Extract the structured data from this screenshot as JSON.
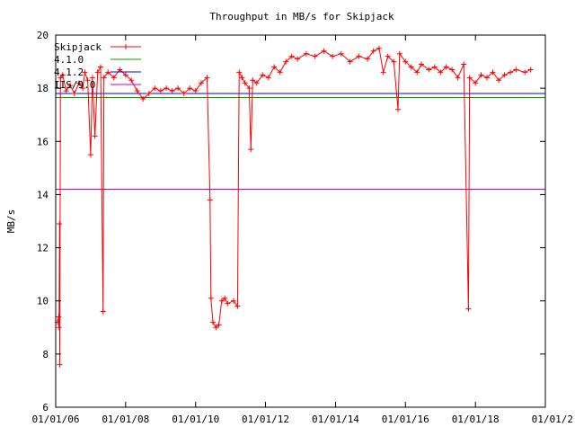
{
  "chart_data": {
    "type": "line",
    "title": "Throughput in MB/s for Skipjack",
    "xlabel": "",
    "ylabel": "MB/s",
    "ylim": [
      6,
      20
    ],
    "xlim": [
      "2006-01-01",
      "2020-01-01"
    ],
    "yticks": [
      6,
      8,
      10,
      12,
      14,
      16,
      18,
      20
    ],
    "xticks": [
      "01/01/06",
      "01/01/08",
      "01/01/10",
      "01/01/12",
      "01/01/14",
      "01/01/16",
      "01/01/18",
      "01/01/2"
    ],
    "xtick_dates": [
      "2006-01-01",
      "2008-01-01",
      "2010-01-01",
      "2012-01-01",
      "2014-01-01",
      "2016-01-01",
      "2018-01-01",
      "2020-01-01"
    ],
    "grid": false,
    "legend_position": "top-left",
    "series": [
      {
        "name": "Skipjack",
        "color": "#ff0000",
        "marker": "plus",
        "points": [
          [
            "2006-01-20",
            9.2
          ],
          [
            "2006-02-01",
            9.4
          ],
          [
            "2006-02-05",
            9.0
          ],
          [
            "2006-02-10",
            12.9
          ],
          [
            "2006-02-12",
            7.6
          ],
          [
            "2006-02-20",
            18.4
          ],
          [
            "2006-03-15",
            18.5
          ],
          [
            "2006-04-20",
            17.9
          ],
          [
            "2006-06-01",
            18.1
          ],
          [
            "2006-07-15",
            17.8
          ],
          [
            "2006-09-01",
            18.2
          ],
          [
            "2006-10-10",
            18.0
          ],
          [
            "2006-11-01",
            18.6
          ],
          [
            "2006-12-01",
            18.3
          ],
          [
            "2007-01-01",
            15.5
          ],
          [
            "2007-01-20",
            18.4
          ],
          [
            "2007-02-15",
            16.2
          ],
          [
            "2007-03-15",
            18.6
          ],
          [
            "2007-04-15",
            18.8
          ],
          [
            "2007-05-10",
            9.6
          ],
          [
            "2007-05-20",
            18.4
          ],
          [
            "2007-07-01",
            18.6
          ],
          [
            "2007-09-01",
            18.4
          ],
          [
            "2007-11-01",
            18.7
          ],
          [
            "2008-01-01",
            18.5
          ],
          [
            "2008-03-01",
            18.3
          ],
          [
            "2008-05-01",
            17.9
          ],
          [
            "2008-07-01",
            17.6
          ],
          [
            "2008-09-01",
            17.8
          ],
          [
            "2008-11-01",
            18.0
          ],
          [
            "2009-01-01",
            17.9
          ],
          [
            "2009-03-01",
            18.0
          ],
          [
            "2009-05-01",
            17.9
          ],
          [
            "2009-07-01",
            18.0
          ],
          [
            "2009-09-01",
            17.8
          ],
          [
            "2009-11-01",
            18.0
          ],
          [
            "2010-01-01",
            17.9
          ],
          [
            "2010-03-01",
            18.2
          ],
          [
            "2010-05-01",
            18.4
          ],
          [
            "2010-06-01",
            13.8
          ],
          [
            "2010-06-10",
            10.1
          ],
          [
            "2010-07-01",
            9.2
          ],
          [
            "2010-08-01",
            9.0
          ],
          [
            "2010-09-01",
            9.1
          ],
          [
            "2010-10-01",
            10.0
          ],
          [
            "2010-11-01",
            10.1
          ],
          [
            "2010-12-01",
            9.9
          ],
          [
            "2011-02-01",
            10.0
          ],
          [
            "2011-03-15",
            9.8
          ],
          [
            "2011-04-01",
            18.6
          ],
          [
            "2011-05-01",
            18.4
          ],
          [
            "2011-06-01",
            18.2
          ],
          [
            "2011-07-15",
            18.0
          ],
          [
            "2011-08-01",
            15.7
          ],
          [
            "2011-08-20",
            18.3
          ],
          [
            "2011-10-01",
            18.2
          ],
          [
            "2011-12-01",
            18.5
          ],
          [
            "2012-02-01",
            18.4
          ],
          [
            "2012-04-01",
            18.8
          ],
          [
            "2012-06-01",
            18.6
          ],
          [
            "2012-08-01",
            19.0
          ],
          [
            "2012-10-01",
            19.2
          ],
          [
            "2012-12-01",
            19.1
          ],
          [
            "2013-03-01",
            19.3
          ],
          [
            "2013-06-01",
            19.2
          ],
          [
            "2013-09-01",
            19.4
          ],
          [
            "2013-12-01",
            19.2
          ],
          [
            "2014-03-01",
            19.3
          ],
          [
            "2014-06-01",
            19.0
          ],
          [
            "2014-09-01",
            19.2
          ],
          [
            "2014-12-01",
            19.1
          ],
          [
            "2015-02-01",
            19.4
          ],
          [
            "2015-04-01",
            19.5
          ],
          [
            "2015-05-15",
            18.6
          ],
          [
            "2015-07-01",
            19.2
          ],
          [
            "2015-09-01",
            19.0
          ],
          [
            "2015-10-15",
            17.2
          ],
          [
            "2015-11-01",
            19.3
          ],
          [
            "2016-01-01",
            19.0
          ],
          [
            "2016-03-01",
            18.8
          ],
          [
            "2016-05-01",
            18.6
          ],
          [
            "2016-06-15",
            18.9
          ],
          [
            "2016-09-01",
            18.7
          ],
          [
            "2016-11-01",
            18.8
          ],
          [
            "2017-01-01",
            18.6
          ],
          [
            "2017-03-01",
            18.8
          ],
          [
            "2017-05-01",
            18.7
          ],
          [
            "2017-07-01",
            18.4
          ],
          [
            "2017-09-01",
            18.9
          ],
          [
            "2017-10-20",
            9.7
          ],
          [
            "2017-11-01",
            18.4
          ],
          [
            "2018-01-01",
            18.2
          ],
          [
            "2018-03-01",
            18.5
          ],
          [
            "2018-05-01",
            18.4
          ],
          [
            "2018-07-01",
            18.6
          ],
          [
            "2018-09-01",
            18.3
          ],
          [
            "2018-11-01",
            18.5
          ],
          [
            "2019-01-01",
            18.6
          ],
          [
            "2019-03-01",
            18.7
          ],
          [
            "2019-06-01",
            18.6
          ],
          [
            "2019-08-01",
            18.7
          ]
        ]
      },
      {
        "name": "4.1.0",
        "color": "#00a000",
        "value": 17.65
      },
      {
        "name": "4.1.2",
        "color": "#0000ff",
        "value": 17.8
      },
      {
        "name": "IIS/9.0",
        "color": "#c000c0",
        "value": 14.2
      }
    ]
  }
}
